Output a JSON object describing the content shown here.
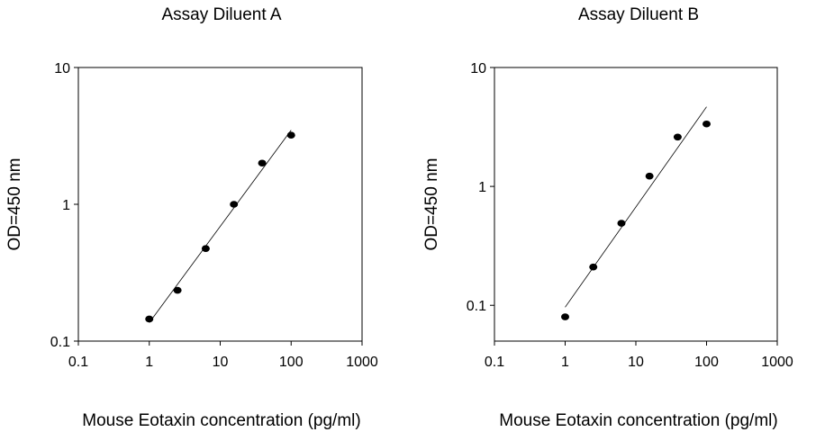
{
  "chart_data": [
    {
      "type": "scatter",
      "title": "Assay Diluent A",
      "xlabel": "Mouse Eotaxin concentration (pg/ml)",
      "ylabel": "OD=450 nm",
      "xscale": "log",
      "yscale": "log",
      "xlim": [
        0.1,
        1000
      ],
      "ylim": [
        0.1,
        10
      ],
      "xticks": [
        "0.1",
        "1",
        "10",
        "100",
        "1000"
      ],
      "yticks": [
        "0.1",
        "1",
        "10"
      ],
      "grid": false,
      "fit_line": true,
      "series": [
        {
          "x": [
            1,
            2.5,
            6.25,
            15.6,
            39,
            100
          ],
          "y": [
            0.145,
            0.235,
            0.475,
            1.0,
            2.0,
            3.2
          ]
        }
      ]
    },
    {
      "type": "scatter",
      "title": "Assay Diluent B",
      "xlabel": "Mouse Eotaxin concentration (pg/ml)",
      "ylabel": "OD=450 nm",
      "xscale": "log",
      "yscale": "log",
      "xlim": [
        0.1,
        1000
      ],
      "ylim": [
        0.05,
        10
      ],
      "xticks": [
        "0.1",
        "1",
        "10",
        "100",
        "1000"
      ],
      "yticks": [
        "0.1",
        "1",
        "10"
      ],
      "grid": false,
      "fit_line": true,
      "series": [
        {
          "x": [
            1,
            2.5,
            6.25,
            15.6,
            39,
            100
          ],
          "y": [
            0.08,
            0.21,
            0.49,
            1.22,
            2.6,
            3.35
          ]
        }
      ]
    }
  ]
}
